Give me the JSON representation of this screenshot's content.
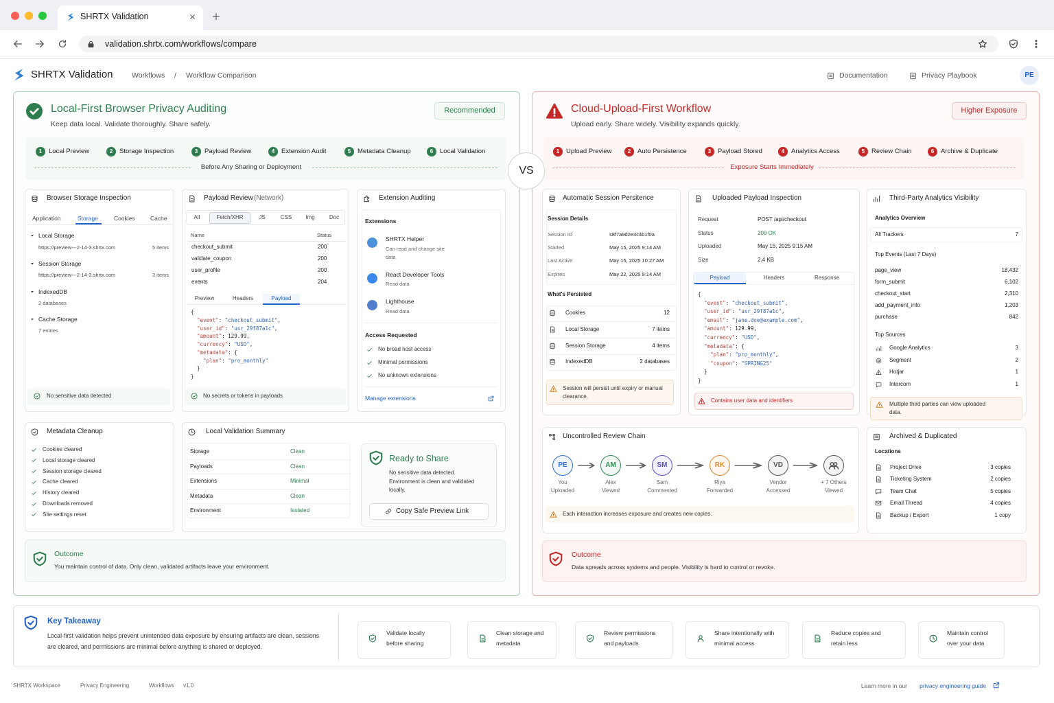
{
  "browser": {
    "tab_title": "SHRTX Validation",
    "url": "validation.shrtx.com/workflows/compare"
  },
  "header": {
    "brand": "SHRTX Validation",
    "breadcrumb": [
      "Workflows",
      "/",
      "Workflow Comparison"
    ],
    "links": [
      "Documentation",
      "Privacy Playbook"
    ],
    "avatar": "PE"
  },
  "vs": "VS",
  "local": {
    "title": "Local-First Browser Privacy Auditing",
    "subtitle": "Keep data local. Validate thoroughly. Share safely.",
    "badge": "Recommended",
    "steps": [
      {
        "n": 1,
        "label": "Local Preview"
      },
      {
        "n": 2,
        "label": "Storage Inspection"
      },
      {
        "n": 3,
        "label": "Payload Review"
      },
      {
        "n": 4,
        "label": "Extension Audit"
      },
      {
        "n": 5,
        "label": "Metadata Cleanup"
      },
      {
        "n": 6,
        "label": "Local Validation"
      }
    ],
    "steps_note": "Before Any Sharing or Deployment",
    "storage": {
      "title": "Browser Storage Inspection",
      "tabs": [
        "Application",
        "Storage",
        "Cookies",
        "Cache"
      ],
      "active_tab": 1,
      "tree": [
        {
          "label": "Local Storage",
          "url": "https://preview---2-14-3.shrtx.com",
          "count": "5 items"
        },
        {
          "label": "Session Storage",
          "url": "https://preview---2-14-3.shrtx.com",
          "count": "3 items"
        },
        {
          "label": "IndexedDB",
          "detail": "2 databases"
        },
        {
          "label": "Cache Storage",
          "detail": "7 entries"
        }
      ],
      "status": "No sensitive data detected"
    },
    "payload": {
      "title": "Payload Review",
      "title_note": "(Network)",
      "filters": [
        "All",
        "Fetch/XHR",
        "JS",
        "CSS",
        "Img",
        "Doc"
      ],
      "active_filter": 1,
      "columns": [
        "Name",
        "Status"
      ],
      "rows": [
        [
          "checkout_submit",
          200
        ],
        [
          "validate_coupon",
          200
        ],
        [
          "user_profile",
          200
        ],
        [
          "events",
          204
        ]
      ],
      "tabs": [
        "Preview",
        "Headers",
        "Payload"
      ],
      "active_tab": 2,
      "code": [
        "{",
        "  \"event\": \"checkout_submit\",",
        "  \"user_id\": \"usr_29f87a1c\",",
        "  \"amount\": 129.99,",
        "  \"currency\": \"USD\",",
        "  \"metadata\": {",
        "    \"plan\": \"pro_monthly\"",
        "  }",
        "}"
      ],
      "status": "No secrets or tokens in payloads"
    },
    "extensions": {
      "title": "Extension Auditing",
      "section": "Extensions",
      "items": [
        {
          "name": "SHRTX Helper",
          "desc": "Can read and change site data"
        },
        {
          "name": "React Developer Tools",
          "desc": "Read data"
        },
        {
          "name": "Lighthouse",
          "desc": "Read data"
        }
      ],
      "access_title": "Access Requested",
      "access": [
        "No broad host access",
        "Minimal permissions",
        "No unknown extensions"
      ],
      "link": "Manage extensions"
    },
    "cleanup": {
      "title": "Metadata Cleanup",
      "items": [
        "Cookies cleared",
        "Local storage cleared",
        "Session storage cleared",
        "Cache cleared",
        "History cleared",
        "Downloads removed",
        "Site settings reset"
      ]
    },
    "summary": {
      "title": "Local Validation Summary",
      "rows": [
        [
          "Storage",
          "Clean"
        ],
        [
          "Payloads",
          "Clean"
        ],
        [
          "Extensions",
          "Minimal"
        ],
        [
          "Metadata",
          "Clean"
        ],
        [
          "Environment",
          "Isolated"
        ]
      ],
      "ready": {
        "title": "Ready to Share",
        "text": "No sensitive data detected. Environment is clean and validated locally.",
        "button": "Copy Safe Preview Link"
      }
    },
    "outcome": {
      "title": "Outcome",
      "text": "You maintain control of data. Only clean, validated artifacts leave your environment."
    }
  },
  "cloud": {
    "title": "Cloud-Upload-First Workflow",
    "subtitle": "Upload early. Share widely. Visibility expands quickly.",
    "badge": "Higher Exposure",
    "steps": [
      {
        "n": 1,
        "label": "Upload Preview"
      },
      {
        "n": 2,
        "label": "Auto Persistence"
      },
      {
        "n": 3,
        "label": "Payload Stored"
      },
      {
        "n": 4,
        "label": "Analytics Access"
      },
      {
        "n": 5,
        "label": "Review Chain"
      },
      {
        "n": 6,
        "label": "Archive & Duplicate"
      }
    ],
    "steps_note": "Exposure Starts Immediately",
    "session": {
      "title": "Automatic Session Persitence",
      "details_title": "Session Details",
      "details": [
        [
          "Session ID",
          "s8f7a9d2e3c4b1f0a"
        ],
        [
          "Started",
          "May 15, 2025 9:14 AM"
        ],
        [
          "Last Active",
          "May 15, 2025 10:27 AM"
        ],
        [
          "Expires",
          "May 22, 2025 9:14 AM"
        ]
      ],
      "persisted_title": "What's Persisted",
      "persisted": [
        [
          "Cookies",
          12
        ],
        [
          "Local Storage",
          "7 items"
        ],
        [
          "Session Storage",
          "4 items"
        ],
        [
          "IndexedDB",
          "2 databases"
        ]
      ],
      "warning": "Session will persist until expiry or manual clearance."
    },
    "upload": {
      "title": "Uploaded Payload Inspection",
      "details": [
        [
          "Request",
          "POST /api/checkout"
        ],
        [
          "Status",
          "200 OK"
        ],
        [
          "Uploaded",
          "May 15, 2025 9:15 AM"
        ],
        [
          "Size",
          "2.4 KB"
        ]
      ],
      "tabs": [
        "Payload",
        "Headers",
        "Response"
      ],
      "active_tab": 0,
      "code": [
        "{",
        "  \"event\": \"checkout_submit\",",
        "  \"user_id\": \"usr_29f87a1c\",",
        "  \"email\": \"jane.doe@example.com\",",
        "  \"amount\": 129.99,",
        "  \"currency\": \"USD\",",
        "  \"metadata\": {",
        "    \"plan\": \"pro_monthly\",",
        "    \"coupon\": \"SPRING25\"",
        "  }",
        "}"
      ],
      "warning": "Contains user data and identifiers"
    },
    "analytics": {
      "title": "Third-Party Analytics Visibility",
      "overview_title": "Analytics Overview",
      "overview": [
        "All Trackers",
        7
      ],
      "events_title": "Top Events (Last 7 Days)",
      "events": [
        [
          "page_view",
          "18,432"
        ],
        [
          "form_submit",
          "6,102"
        ],
        [
          "checkout_start",
          "2,310"
        ],
        [
          "add_payment_info",
          "1,203"
        ],
        [
          "purchase",
          842
        ]
      ],
      "sources_title": "Top Sources",
      "sources": [
        [
          "Google Analytics",
          3
        ],
        [
          "Segment",
          2
        ],
        [
          "Hotjar",
          1
        ],
        [
          "Intercom",
          1
        ]
      ],
      "warning": "Multiple third parties can view uploaded data."
    },
    "chain": {
      "title": "Uncontrolled Review Chain",
      "nodes": [
        {
          "initials": "PE",
          "name": "You",
          "action": "Uploaded",
          "color": "#2f6fd6"
        },
        {
          "initials": "AM",
          "name": "Alex",
          "action": "Viewed",
          "color": "#2f8a55"
        },
        {
          "initials": "SM",
          "name": "Sam",
          "action": "Commented",
          "color": "#5b4fc4"
        },
        {
          "initials": "RK",
          "name": "Riya",
          "action": "Forwarded",
          "color": "#e08a2e"
        },
        {
          "initials": "VD",
          "name": "Vendor",
          "action": "Accessed",
          "color": "#555555"
        },
        {
          "name": "+ 7 Others",
          "action": "Viewed",
          "color": "#555555"
        }
      ],
      "warning": "Each interaction increases exposure and creates new copies."
    },
    "archive": {
      "title": "Archived & Duplicated",
      "section": "Locations",
      "items": [
        [
          "Project Drive",
          "3 copies"
        ],
        [
          "Ticketing System",
          "2 copies"
        ],
        [
          "Team Chat",
          "5 copies"
        ],
        [
          "Email Thread",
          "4 copies"
        ],
        [
          "Backup / Export",
          "1 copy"
        ]
      ]
    },
    "outcome": {
      "title": "Outcome",
      "text": "Data spreads across systems and people. Visibility is hard to control or revoke."
    }
  },
  "takeaway": {
    "title": "Key Takeaway",
    "text": "Local-first validation helps prevent unintended data exposure by ensuring artifacts are clean, sessions are cleared, and permissions are minimal before anything is shared or deployed.",
    "items": [
      "Validate locally before sharing",
      "Clean storage and metadata",
      "Review permissions and payloads",
      "Share intentionally with minimal access",
      "Reduce copies and retain less",
      "Maintain control over your data"
    ]
  },
  "footer": {
    "left": [
      "SHRTX Workspace",
      "Privacy Engineering",
      "Workflows",
      "v1.0"
    ],
    "lead": "Learn more in our",
    "link": "privacy engineering guide"
  }
}
